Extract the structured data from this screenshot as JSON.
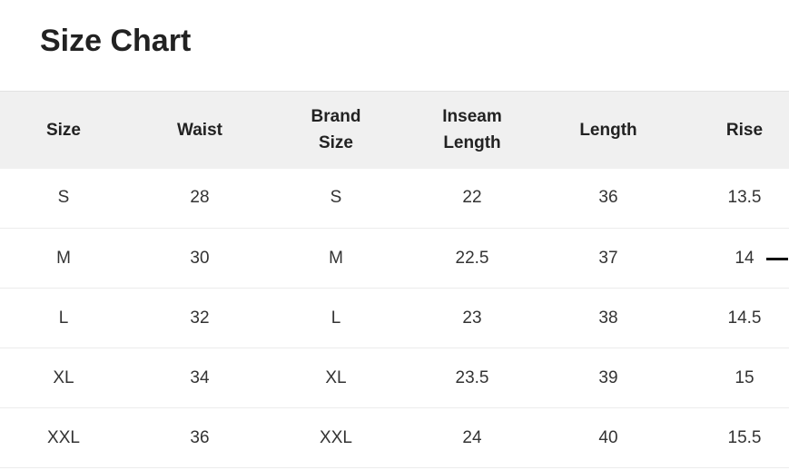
{
  "title": "Size Chart",
  "columns": [
    "Size",
    "Waist",
    "Brand Size",
    "Inseam Length",
    "Length",
    "Rise"
  ],
  "rows": [
    [
      "S",
      "28",
      "S",
      "22",
      "36",
      "13.5"
    ],
    [
      "M",
      "30",
      "M",
      "22.5",
      "37",
      "14"
    ],
    [
      "L",
      "32",
      "L",
      "23",
      "38",
      "14.5"
    ],
    [
      "XL",
      "34",
      "XL",
      "23.5",
      "39",
      "15"
    ],
    [
      "XXL",
      "36",
      "XXL",
      "24",
      "40",
      "15.5"
    ]
  ]
}
